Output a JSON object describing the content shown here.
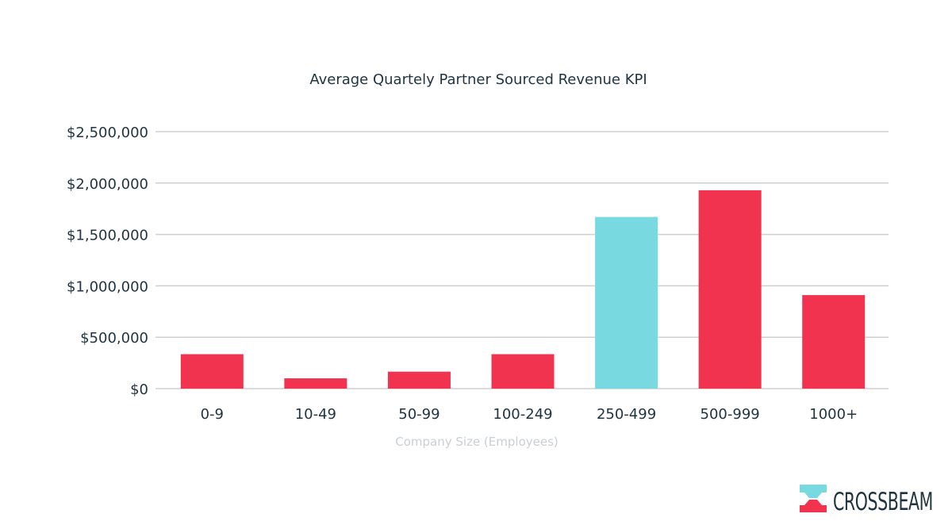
{
  "chart_data": {
    "type": "bar",
    "title": "Average Quartely Partner Sourced Revenue KPI",
    "xlabel": "Company Size (Employees)",
    "ylabel": "",
    "categories": [
      "0-9",
      "10-49",
      "50-99",
      "100-249",
      "250-499",
      "500-999",
      "1000+"
    ],
    "values": [
      335000,
      100000,
      165000,
      335000,
      1670000,
      1930000,
      910000
    ],
    "bar_colors": [
      "#f2334f",
      "#f2334f",
      "#f2334f",
      "#f2334f",
      "#78d9e1",
      "#f2334f",
      "#f2334f"
    ],
    "yticks": [
      {
        "value": 0,
        "label": "$0"
      },
      {
        "value": 500000,
        "label": "$500,000"
      },
      {
        "value": 1000000,
        "label": "$1,000,000"
      },
      {
        "value": 1500000,
        "label": "$1,500,000"
      },
      {
        "value": 2000000,
        "label": "$2,000,000"
      },
      {
        "value": 2500000,
        "label": "$2,500,000"
      }
    ],
    "ylim": [
      0,
      2500000
    ],
    "grid": true,
    "legend": "none"
  },
  "brand": {
    "name": "CROSSBEAM",
    "colors": {
      "teal": "#78d9e1",
      "red": "#f2334f",
      "navy": "#1f3340"
    }
  }
}
